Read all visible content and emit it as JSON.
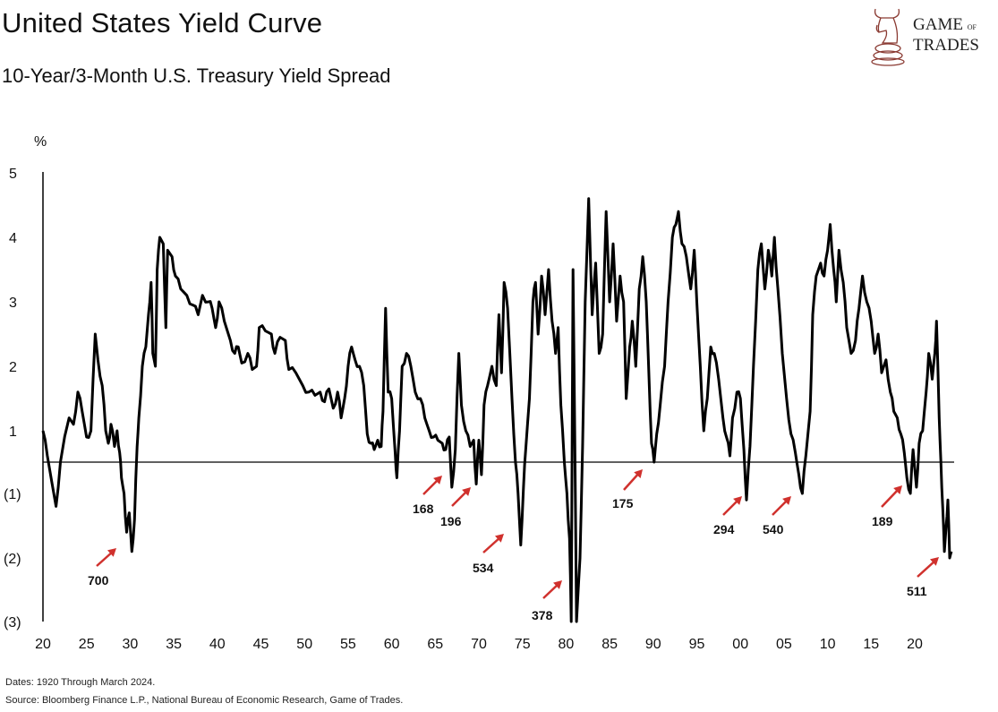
{
  "header": {
    "title": "United States Yield Curve",
    "subtitle": "10-Year/3-Month U.S. Treasury Yield Spread"
  },
  "logo": {
    "line1": "GAME",
    "of": "OF",
    "line2": "TRADES",
    "color": "#8a3a32"
  },
  "footer": {
    "dates": "Dates: 1920 Through March 2024.",
    "source": "Source: Bloomberg Finance L.P., National Bureau of Economic Research, Game of Trades."
  },
  "chart_data": {
    "type": "line",
    "title": "",
    "ylabel": "%",
    "xlabel": "",
    "ylim": [
      -3,
      5
    ],
    "xlim": [
      1920,
      2024.25
    ],
    "grid": false,
    "line_color": "#000000",
    "arrow_color": "#d0312d",
    "y_ticks": [
      {
        "value": 5,
        "label": "5"
      },
      {
        "value": 4,
        "label": "4"
      },
      {
        "value": 3,
        "label": "3"
      },
      {
        "value": 2,
        "label": "2"
      },
      {
        "value": 1,
        "label": "1"
      },
      {
        "value": -1,
        "label": "(1)"
      },
      {
        "value": -2,
        "label": "(2)"
      },
      {
        "value": -3,
        "label": "(3)"
      }
    ],
    "x_ticks": [
      {
        "year": 1920,
        "label": "20"
      },
      {
        "year": 1925,
        "label": "25"
      },
      {
        "year": 1930,
        "label": "30"
      },
      {
        "year": 1935,
        "label": "35"
      },
      {
        "year": 1940,
        "label": "40"
      },
      {
        "year": 1945,
        "label": "45"
      },
      {
        "year": 1950,
        "label": "50"
      },
      {
        "year": 1955,
        "label": "55"
      },
      {
        "year": 1960,
        "label": "60"
      },
      {
        "year": 1965,
        "label": "65"
      },
      {
        "year": 1970,
        "label": "70"
      },
      {
        "year": 1975,
        "label": "75"
      },
      {
        "year": 1980,
        "label": "80"
      },
      {
        "year": 1985,
        "label": "85"
      },
      {
        "year": 1990,
        "label": "90"
      },
      {
        "year": 1995,
        "label": "95"
      },
      {
        "year": 2000,
        "label": "00"
      },
      {
        "year": 2005,
        "label": "05"
      },
      {
        "year": 2010,
        "label": "10"
      },
      {
        "year": 2015,
        "label": "15"
      },
      {
        "year": 2020,
        "label": "20"
      }
    ],
    "annotations": [
      "700",
      "168",
      "196",
      "534",
      "378",
      "175",
      "294",
      "540",
      "189",
      "511"
    ],
    "series": [
      {
        "x": [
          1920,
          1920.5,
          1921.5,
          1922,
          1923,
          1923.5,
          1924,
          1924.5,
          1925,
          1925.5,
          1926,
          1926.3,
          1926.8,
          1927.2,
          1927.5,
          1927.8,
          1928.2,
          1928.5,
          1928.8,
          1929,
          1929.3,
          1929.6,
          1929.9,
          1930.2,
          1930.5,
          1930.8,
          1931,
          1931.4,
          1931.8,
          1932.1,
          1932.4,
          1932.6,
          1932.9,
          1933.1,
          1933.4,
          1933.8,
          1934.1,
          1934.3,
          1934.8,
          1935.2,
          1935.8,
          1936.5,
          1937.2,
          1937.8,
          1938.3,
          1939,
          1939.4,
          1939.8,
          1940.2,
          1940.8,
          1941.5,
          1942,
          1942.4,
          1942.8,
          1943.5,
          1944,
          1944.5,
          1944.8,
          1945.5,
          1946.2,
          1946.6,
          1947.2,
          1947.8,
          1948.2,
          1949,
          1949.8,
          1950.5,
          1951.2,
          1951.8,
          1952.3,
          1952.8,
          1953.3,
          1953.8,
          1954.2,
          1954.6,
          1955,
          1955.4,
          1955.8,
          1956.3,
          1956.8,
          1957.2,
          1957.6,
          1958,
          1958.4,
          1958.8,
          1959,
          1959.3,
          1959.6,
          1960,
          1960.4,
          1960.6,
          1960.9,
          1961.2,
          1961.7,
          1962.2,
          1962.7,
          1963.3,
          1963.8,
          1964.3,
          1964.8,
          1965.3,
          1965.8,
          1966.2,
          1966.6,
          1966.9,
          1967.3,
          1967.7,
          1968,
          1968.5,
          1969,
          1969.4,
          1969.7,
          1970,
          1970.3,
          1970.6,
          1971,
          1971.5,
          1972,
          1972.3,
          1972.6,
          1972.9,
          1973.3,
          1973.8,
          1974.2,
          1974.5,
          1974.8,
          1975.1,
          1975.4,
          1975.8,
          1976.2,
          1976.5,
          1976.8,
          1977.2,
          1977.6,
          1978,
          1978.4,
          1978.8,
          1979.1,
          1979.4,
          1979.8,
          1980.1,
          1980.4,
          1980.6,
          1980.8,
          1981,
          1981.2,
          1981.6,
          1981.9,
          1982.2,
          1982.6,
          1983,
          1983.4,
          1983.8,
          1984.2,
          1984.6,
          1985,
          1985.4,
          1985.8,
          1986.2,
          1986.6,
          1986.9,
          1987.3,
          1987.6,
          1988,
          1988.4,
          1988.8,
          1989.2,
          1989.5,
          1989.8,
          1990.1,
          1990.4,
          1990.8,
          1991.3,
          1991.7,
          1992.2,
          1992.6,
          1992.9,
          1993.3,
          1993.8,
          1994.3,
          1994.7,
          1995,
          1995.4,
          1995.8,
          1996.2,
          1996.6,
          1997,
          1997.5,
          1998,
          1998.4,
          1998.8,
          1999.1,
          1999.6,
          2000,
          2000.4,
          2000.7,
          2001.1,
          2001.5,
          2002,
          2002.4,
          2002.8,
          2003.2,
          2003.6,
          2003.9,
          2004.3,
          2004.8,
          2005.3,
          2005.8,
          2006.3,
          2006.7,
          2007.1,
          2007.5,
          2008,
          2008.3,
          2008.7,
          2009.2,
          2009.6,
          2010,
          2010.3,
          2010.7,
          2011,
          2011.3,
          2011.8,
          2012.2,
          2012.7,
          2013.2,
          2013.6,
          2014,
          2014.5,
          2015,
          2015.4,
          2015.8,
          2016.2,
          2016.7,
          2017.2,
          2017.6,
          2018,
          2018.4,
          2018.8,
          2019.1,
          2019.5,
          2019.8,
          2020.2,
          2020.5,
          2020.9,
          2021.3,
          2021.6,
          2022,
          2022.3,
          2022.5,
          2022.8,
          2023,
          2023.2,
          2023.4,
          2023.6,
          2023.8,
          2024,
          2024.2
        ],
        "y": [
          1.0,
          0.2,
          -1.2,
          0,
          1.2,
          1.1,
          1.6,
          1.3,
          0.8,
          1.0,
          2.5,
          2.1,
          1.7,
          1.0,
          0.6,
          1.1,
          0.5,
          1.0,
          0.3,
          -0.5,
          -1.0,
          -1.6,
          -1.3,
          -1.9,
          -1.4,
          0.5,
          1.2,
          2.0,
          2.3,
          2.8,
          3.3,
          2.2,
          2.0,
          3.5,
          4.0,
          3.9,
          2.6,
          3.8,
          3.7,
          3.4,
          3.2,
          3.1,
          2.95,
          2.8,
          3.1,
          3.0,
          2.9,
          2.6,
          3.0,
          2.7,
          2.4,
          2.2,
          2.3,
          2.05,
          2.2,
          1.95,
          2.0,
          2.6,
          2.55,
          2.5,
          2.2,
          2.45,
          2.4,
          1.95,
          1.9,
          1.7,
          1.6,
          1.55,
          1.6,
          1.45,
          1.65,
          1.35,
          1.6,
          1.2,
          1.5,
          2.0,
          2.3,
          2.1,
          2.0,
          1.7,
          0.9,
          0.6,
          0.4,
          0.7,
          0.5,
          1.3,
          2.9,
          1.6,
          1.5,
          0.3,
          -0.5,
          1.0,
          2.0,
          2.2,
          2.0,
          1.6,
          1.5,
          1.2,
          1.0,
          0.8,
          0.7,
          0.6,
          0.4,
          0.8,
          -0.8,
          0.4,
          2.2,
          1.4,
          1.0,
          0.5,
          0.7,
          -0.7,
          0.7,
          -0.4,
          1.4,
          1.7,
          2.0,
          1.7,
          2.8,
          1.9,
          3.3,
          2.9,
          1.5,
          0,
          -1.0,
          -1.8,
          -0.9,
          0.5,
          1.5,
          3.0,
          3.3,
          2.5,
          3.4,
          2.8,
          3.5,
          2.7,
          2.2,
          2.6,
          1.4,
          0,
          -1.0,
          -1.7,
          -3.0,
          3.5,
          1.0,
          -3.0,
          -2.0,
          0.5,
          3.0,
          4.6,
          2.8,
          3.6,
          2.2,
          2.5,
          4.4,
          3.0,
          3.9,
          2.7,
          3.4,
          3.0,
          1.5,
          2.3,
          2.7,
          2.0,
          3.2,
          3.7,
          3.0,
          1.9,
          0.6,
          0.0,
          0.9,
          1.4,
          2.0,
          3.0,
          4.0,
          4.2,
          4.4,
          3.9,
          3.7,
          3.2,
          3.8,
          3.0,
          2.0,
          1.0,
          1.5,
          2.3,
          2.2,
          1.8,
          1.2,
          0.8,
          0.2,
          1.2,
          1.6,
          1.5,
          0.4,
          -1.1,
          0.5,
          2.0,
          3.5,
          3.9,
          3.2,
          3.8,
          3.4,
          4.0,
          3.2,
          2.2,
          1.5,
          0.9,
          0.3,
          -0.4,
          -1.0,
          0.2,
          1.3,
          2.8,
          3.4,
          3.6,
          3.4,
          3.8,
          4.2,
          3.5,
          3.0,
          3.8,
          3.3,
          2.6,
          2.2,
          2.4,
          2.9,
          3.4,
          3.0,
          2.7,
          2.2,
          2.5,
          1.9,
          2.1,
          1.6,
          1.3,
          1.2,
          0.9,
          0.3,
          -0.5,
          -1.0,
          0.4,
          -0.8,
          0.6,
          1.0,
          1.6,
          2.2,
          1.8,
          2.2,
          2.7,
          1.2,
          0,
          -1.2,
          -1.9,
          -1.5,
          -1.1,
          -2.0,
          -1.9
        ]
      }
    ]
  }
}
